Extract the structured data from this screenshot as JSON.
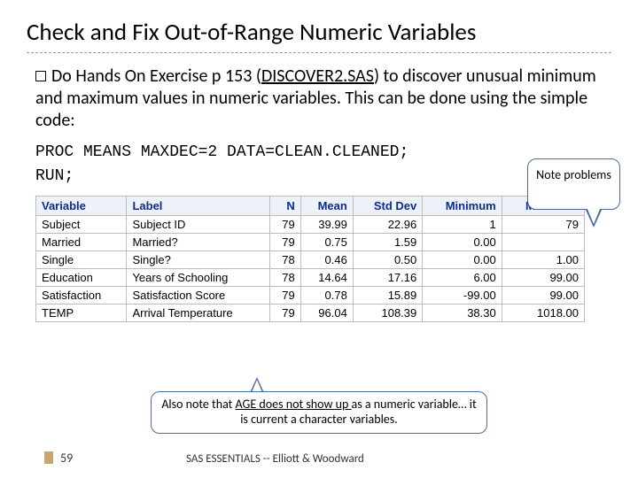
{
  "title": "Check and Fix Out-of-Range Numeric Variables",
  "body": {
    "prefix": "Do Hands On Exercise p 153 (",
    "underlined": "DISCOVER2.SAS",
    "suffix": ") to discover unusual minimum and maximum values in numeric variables. This can be done using the simple code:"
  },
  "code": {
    "line1": "PROC MEANS MAXDEC=2 DATA=CLEAN.CLEANED;",
    "line2": "RUN;"
  },
  "table": {
    "columns": [
      "Variable",
      "Label",
      "N",
      "Mean",
      "Std Dev",
      "Minimum",
      "Maximum"
    ],
    "col_numeric": [
      false,
      false,
      true,
      true,
      true,
      true,
      true
    ],
    "rows": [
      [
        "Subject",
        "Subject ID",
        "79",
        "39.99",
        "22.96",
        "1",
        "79"
      ],
      [
        "Married",
        "Married?",
        "79",
        "0.75",
        "1.59",
        "0.00",
        ""
      ],
      [
        "Single",
        "Single?",
        "78",
        "0.46",
        "0.50",
        "0.00",
        "1.00"
      ],
      [
        "Education",
        "Years of Schooling",
        "78",
        "14.64",
        "17.16",
        "6.00",
        "99.00"
      ],
      [
        "Satisfaction",
        "Satisfaction Score",
        "79",
        "0.78",
        "15.89",
        "-99.00",
        "99.00"
      ],
      [
        "TEMP",
        "Arrival Temperature",
        "79",
        "96.04",
        "108.39",
        "38.30",
        "1018.00"
      ]
    ]
  },
  "note_callout": "Note problems",
  "bottom_callout": {
    "prefix": "Also note that ",
    "underlined": "AGE does not show up ",
    "suffix": "as a numeric variable… it is current a character variables."
  },
  "footer": {
    "page": "59",
    "text": "SAS ESSENTIALS -- Elliott & Woodward"
  },
  "colors": {
    "header_bg": "#edf2f9",
    "header_fg": "#0f2b8d",
    "border": "#bcbcbc",
    "callout_border": "#4a6aa0"
  }
}
